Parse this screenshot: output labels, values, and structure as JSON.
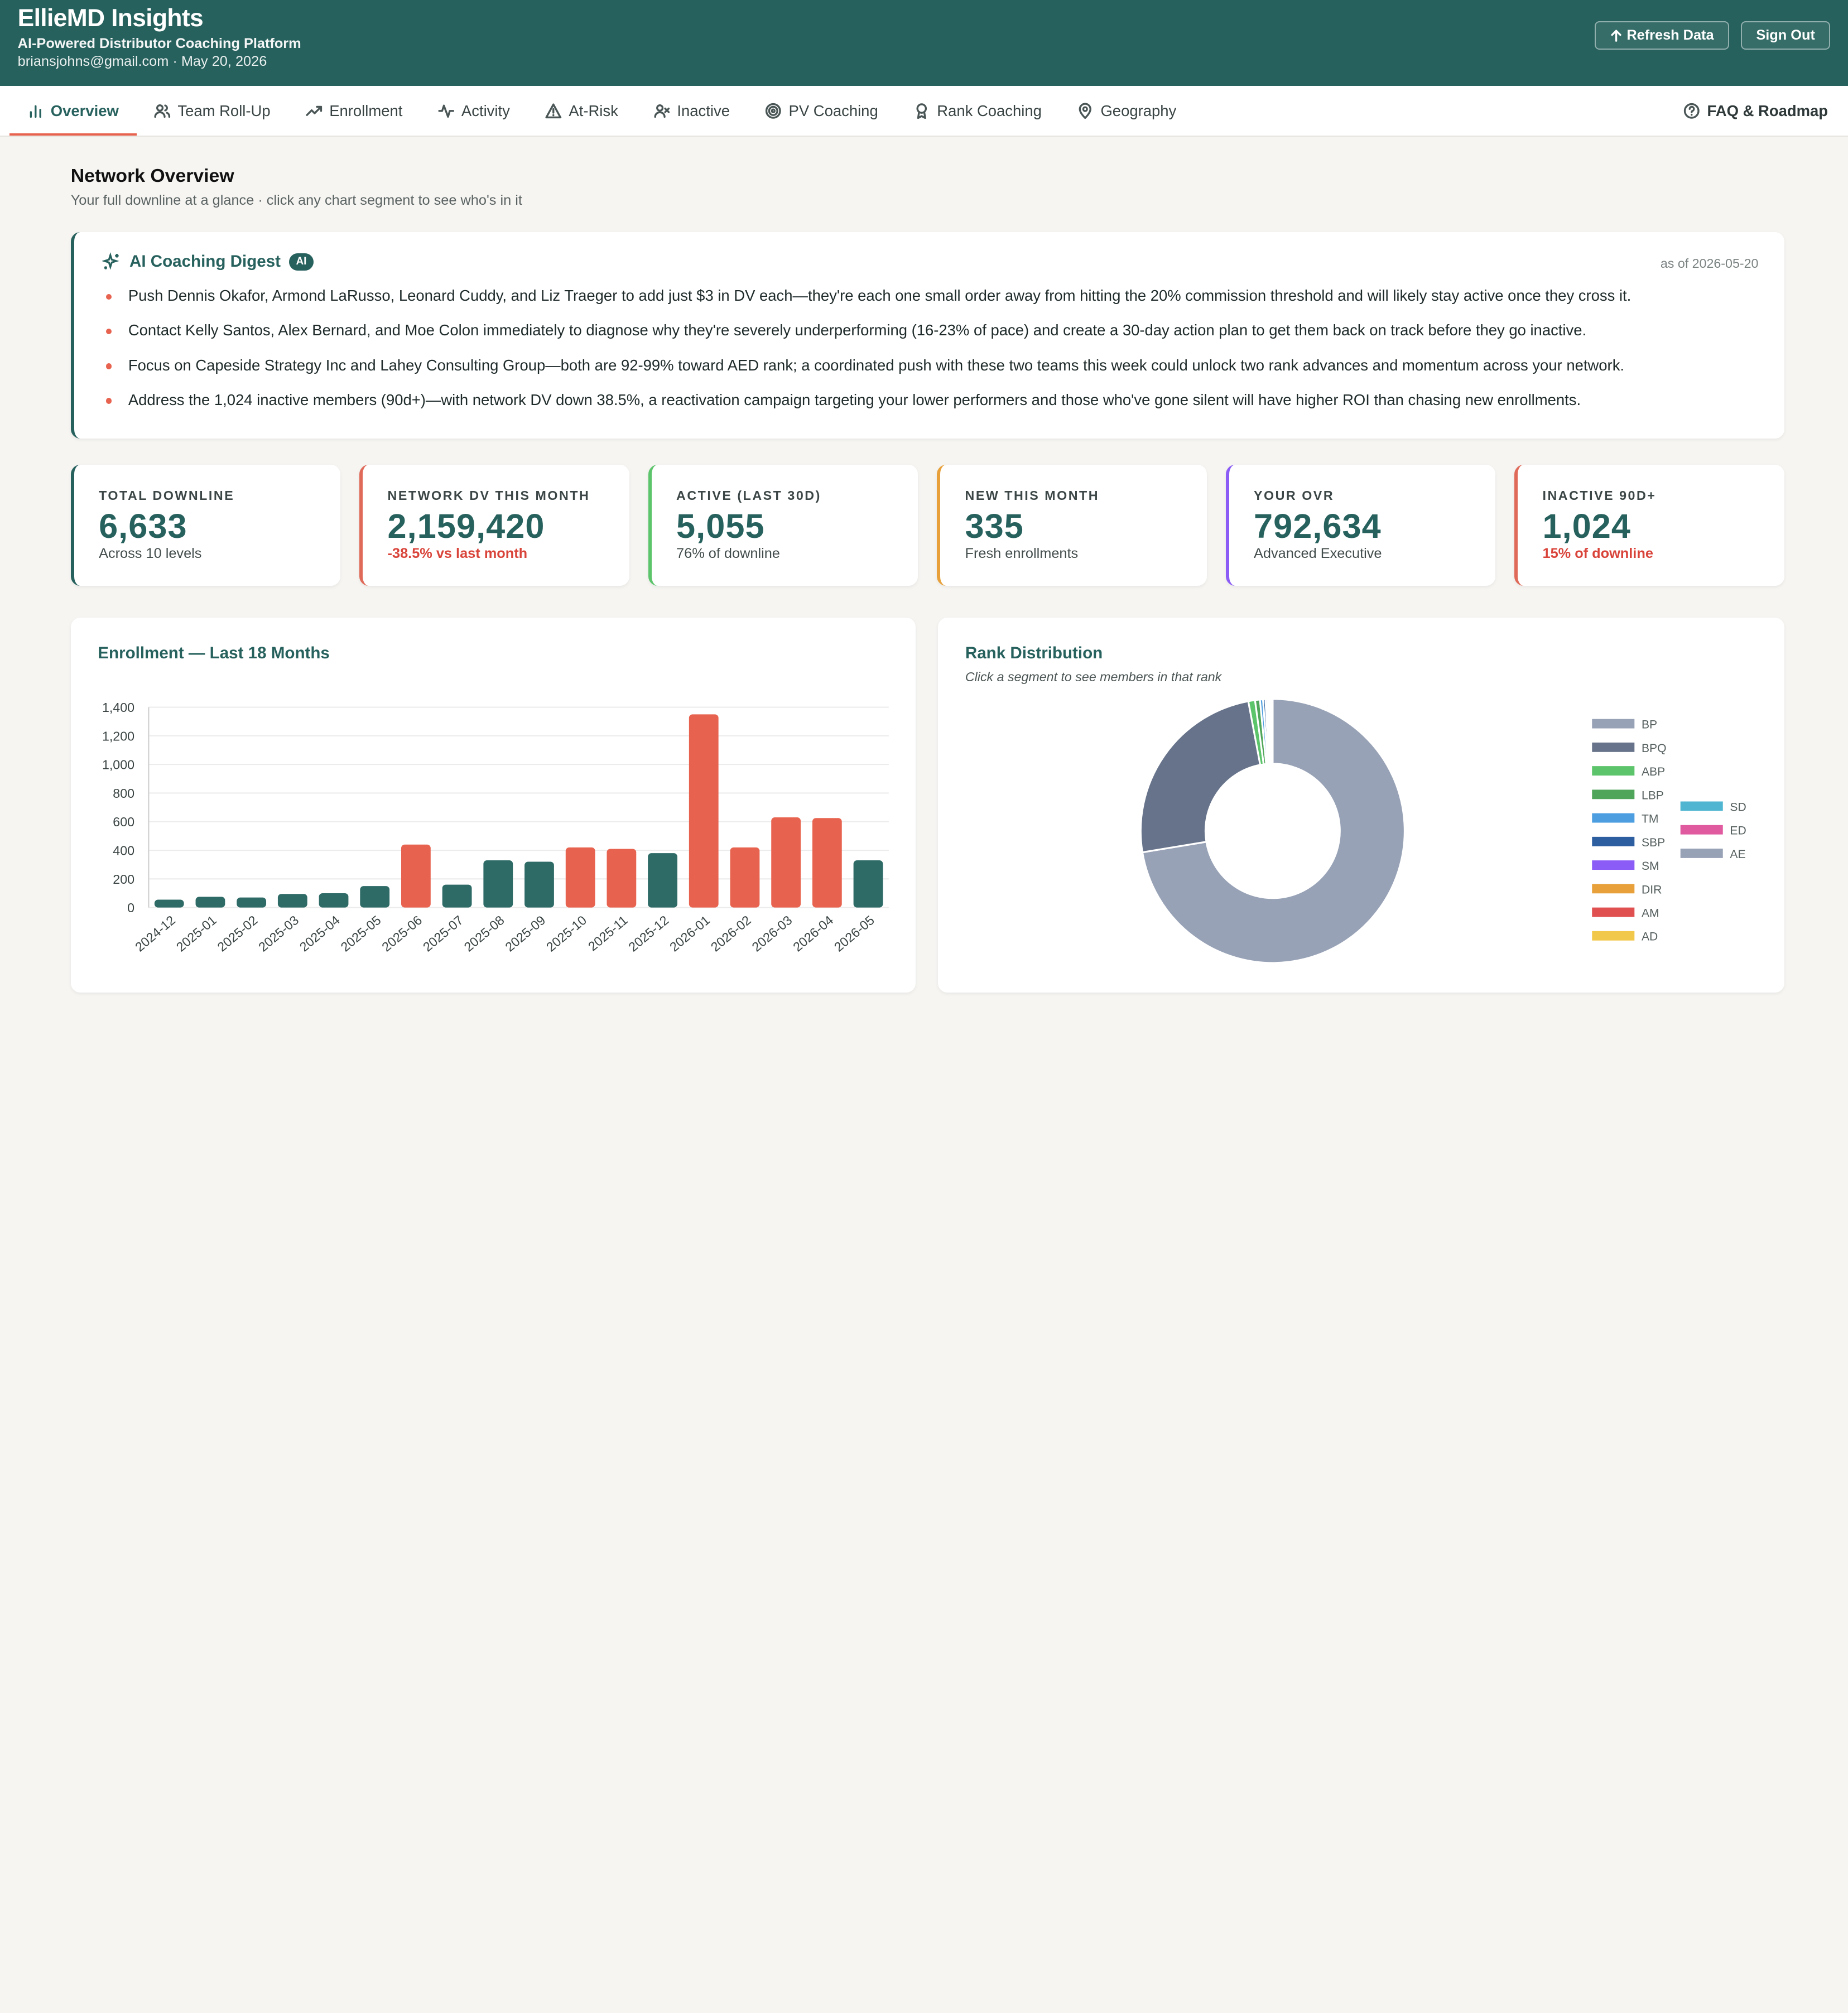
{
  "header": {
    "title": "EllieMD Insights",
    "subtitle": "AI-Powered Distributor Coaching Platform",
    "user_line": "briansjohns@gmail.com · May 20, 2026",
    "refresh_label": "Refresh Data",
    "signout_label": "Sign Out"
  },
  "nav": {
    "tabs": [
      {
        "label": "Overview",
        "icon": "bar-chart-icon"
      },
      {
        "label": "Team Roll-Up",
        "icon": "users-icon"
      },
      {
        "label": "Enrollment",
        "icon": "trending-up-icon"
      },
      {
        "label": "Activity",
        "icon": "activity-icon"
      },
      {
        "label": "At-Risk",
        "icon": "warning-icon"
      },
      {
        "label": "Inactive",
        "icon": "user-x-icon"
      },
      {
        "label": "PV Coaching",
        "icon": "target-icon"
      },
      {
        "label": "Rank Coaching",
        "icon": "award-icon"
      },
      {
        "label": "Geography",
        "icon": "map-pin-icon"
      }
    ],
    "faq_label": "FAQ & Roadmap"
  },
  "overview": {
    "title": "Network Overview",
    "subtitle": "Your full downline at a glance · click any chart segment to see who's in it"
  },
  "digest": {
    "title": "AI Coaching Digest",
    "badge": "AI",
    "as_of": "as of 2026-05-20",
    "items": [
      "Push Dennis Okafor, Armond LaRusso, Leonard Cuddy, and Liz Traeger to add just $3 in DV each—they're each one small order away from hitting the 20% commission threshold and will likely stay active once they cross it.",
      "Contact Kelly Santos, Alex Bernard, and Moe Colon immediately to diagnose why they're severely underperforming (16-23% of pace) and create a 30-day action plan to get them back on track before they go inactive.",
      "Focus on Capeside Strategy Inc and Lahey Consulting Group—both are 92-99% toward AED rank; a coordinated push with these two teams this week could unlock two rank advances and momentum across your network.",
      "Address the 1,024 inactive members (90d+)—with network DV down 38.5%, a reactivation campaign targeting your lower performers and those who've gone silent will have higher ROI than chasing new enrollments."
    ]
  },
  "stats": [
    {
      "label": "TOTAL DOWNLINE",
      "value": "6,633",
      "note": "Across 10 levels",
      "accent": "#27615d",
      "negative": false
    },
    {
      "label": "NETWORK DV THIS MONTH",
      "value": "2,159,420",
      "note": "-38.5% vs last month",
      "accent": "#e06a5a",
      "negative": true
    },
    {
      "label": "ACTIVE (LAST 30D)",
      "value": "5,055",
      "note": "76% of downline",
      "accent": "#5cc46a",
      "negative": false
    },
    {
      "label": "NEW THIS MONTH",
      "value": "335",
      "note": "Fresh enrollments",
      "accent": "#e8a13a",
      "negative": false
    },
    {
      "label": "YOUR OVR",
      "value": "792,634",
      "note": "Advanced Executive",
      "accent": "#8b5cf6",
      "negative": false
    },
    {
      "label": "INACTIVE 90D+",
      "value": "1,024",
      "note": "15% of downline",
      "accent": "#e06a5a",
      "negative": true
    }
  ],
  "enrollment_card": {
    "title": "Enrollment — Last 18 Months"
  },
  "rank_card": {
    "title": "Rank Distribution",
    "subtitle": "Click a segment to see members in that rank"
  },
  "chart_data": [
    {
      "type": "bar",
      "title": "Enrollment — Last 18 Months",
      "categories": [
        "2024-12",
        "2025-01",
        "2025-02",
        "2025-03",
        "2025-04",
        "2025-05",
        "2025-06",
        "2025-07",
        "2025-08",
        "2025-09",
        "2025-10",
        "2025-11",
        "2025-12",
        "2026-01",
        "2026-02",
        "2026-03",
        "2026-04",
        "2026-05"
      ],
      "values": [
        55,
        75,
        70,
        95,
        100,
        150,
        440,
        160,
        330,
        320,
        420,
        410,
        380,
        1350,
        420,
        630,
        625,
        330
      ],
      "highlight": [
        false,
        false,
        false,
        false,
        false,
        false,
        true,
        false,
        false,
        false,
        true,
        true,
        false,
        true,
        true,
        true,
        true,
        false
      ],
      "ylim": [
        0,
        1400
      ],
      "yticks": [
        0,
        200,
        400,
        600,
        800,
        1000,
        1200,
        1400
      ],
      "grid": true,
      "colors": {
        "normal": "#2e6b67",
        "highlight": "#e8634f"
      }
    },
    {
      "type": "pie",
      "title": "Rank Distribution",
      "legend_position": "right",
      "slices": [
        {
          "label": "BP",
          "value": 4850,
          "color": "#98a2b6"
        },
        {
          "label": "BPQ",
          "value": 1650,
          "color": "#67738a"
        },
        {
          "label": "ABP",
          "value": 55,
          "color": "#5cc46a"
        },
        {
          "label": "LBP",
          "value": 40,
          "color": "#4fa65a"
        },
        {
          "label": "TM",
          "value": 25,
          "color": "#4c9ee0"
        },
        {
          "label": "SBP",
          "value": 20,
          "color": "#2d5fa0"
        },
        {
          "label": "SM",
          "value": 15,
          "color": "#8b5cf6"
        },
        {
          "label": "DIR",
          "value": 12,
          "color": "#e8a13a"
        },
        {
          "label": "AM",
          "value": 10,
          "color": "#e05050"
        },
        {
          "label": "AD",
          "value": 8,
          "color": "#f2c84b"
        },
        {
          "label": "SD",
          "value": 6,
          "color": "#4fb5d0"
        },
        {
          "label": "ED",
          "value": 4,
          "color": "#e05aa0"
        },
        {
          "label": "AE",
          "value": 3,
          "color": "#98a2b6"
        }
      ]
    }
  ]
}
